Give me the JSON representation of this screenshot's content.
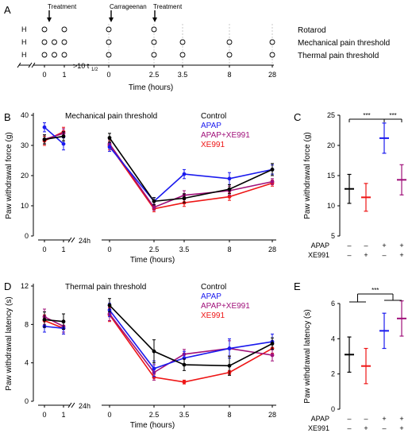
{
  "panelA": {
    "letter": "A",
    "rows": [
      {
        "prefix": "H",
        "label": "Rotarod",
        "pre": [
          0,
          1
        ],
        "post": [
          0,
          2.5
        ]
      },
      {
        "prefix": "H",
        "label": "Mechanical pain threshold",
        "pre": [
          0,
          0.5,
          1
        ],
        "post": [
          0,
          2.5,
          3.5,
          8,
          28
        ]
      },
      {
        "prefix": "H",
        "label": "Thermal pain threshold",
        "pre": [
          0,
          0.5,
          1
        ],
        "post": [
          0,
          2.5,
          3.5,
          8,
          28
        ]
      }
    ],
    "arrows": [
      "Treatment",
      "Carrageenan",
      "Treatment"
    ],
    "gap_label": ">10 t",
    "gap_sub": "1/2",
    "ticks_pre": [
      "0",
      "1"
    ],
    "ticks_post": [
      "0",
      "2.5",
      "3.5",
      "8",
      "28"
    ],
    "xlabel": "Time (hours)"
  },
  "colors": {
    "Control": "#000000",
    "APAP": "#1a1aee",
    "APAP+XE991": "#a0107a",
    "XE991": "#ee1515"
  },
  "chart_data": [
    {
      "id": "B",
      "type": "line",
      "title": "Mechanical pain threshold",
      "ylabel": "Paw withdrawal force (g)",
      "xlabel": "Time (hours)",
      "ylim": [
        0,
        40
      ],
      "yticks": [
        "0",
        "10",
        "20",
        "30",
        "40"
      ],
      "gap_label": "24h",
      "x_pre": [
        "0",
        "1"
      ],
      "x_post": [
        "0",
        "2.5",
        "3.5",
        "8",
        "28"
      ],
      "legend": [
        "Control",
        "APAP",
        "APAP+XE991",
        "XE991"
      ],
      "series": [
        {
          "name": "Control",
          "pre": [
            32,
            33
          ],
          "pre_err": [
            1.5,
            1.5
          ],
          "post": [
            32.5,
            11.5,
            12.5,
            15.5,
            22
          ],
          "post_err": [
            1.5,
            1.2,
            1.5,
            1.5,
            2
          ]
        },
        {
          "name": "APAP",
          "pre": [
            36,
            30.5
          ],
          "pre_err": [
            1.5,
            2
          ],
          "post": [
            29.5,
            11.5,
            20.5,
            19,
            22
          ],
          "post_err": [
            1.5,
            1.2,
            1.5,
            2,
            1.5
          ]
        },
        {
          "name": "APAP+XE991",
          "pre": [
            32,
            34
          ],
          "pre_err": [
            1.5,
            1.5
          ],
          "post": [
            30.5,
            9.5,
            13.5,
            15,
            18
          ],
          "post_err": [
            1.5,
            1,
            1.5,
            1.5,
            1
          ]
        },
        {
          "name": "XE991",
          "pre": [
            31.5,
            34.5
          ],
          "pre_err": [
            1.5,
            1.5
          ],
          "post": [
            30,
            9,
            11,
            13,
            17.5
          ],
          "post_err": [
            1.5,
            1,
            1.2,
            1.2,
            1
          ]
        }
      ]
    },
    {
      "id": "C",
      "type": "bar",
      "ylabel": "Paw withdrawal force (g)",
      "ylim": [
        5,
        25
      ],
      "yticks": [
        "5",
        "10",
        "15",
        "20",
        "25"
      ],
      "row_labels": [
        "APAP",
        "XE991"
      ],
      "categories": [
        [
          "–",
          "–"
        ],
        [
          "–",
          "+"
        ],
        [
          "+",
          "–"
        ],
        [
          "+",
          "+"
        ]
      ],
      "series": [
        {
          "name": "Control",
          "value": 12.8,
          "err": 2.4
        },
        {
          "name": "XE991",
          "value": 11.4,
          "err": 2.3
        },
        {
          "name": "APAP",
          "value": 21.2,
          "err": 2.5
        },
        {
          "name": "APAP+XE991",
          "value": 14.3,
          "err": 2.5
        }
      ],
      "sig_labels": [
        "***",
        "***"
      ]
    },
    {
      "id": "D",
      "type": "line",
      "title": "Thermal pain threshold",
      "ylabel": "Paw withdrawal latency (s)",
      "xlabel": "Time (hours)",
      "ylim": [
        0,
        12
      ],
      "yticks": [
        "0",
        "4",
        "8",
        "12"
      ],
      "gap_label": "24h",
      "x_pre": [
        "0",
        "1"
      ],
      "x_post": [
        "0",
        "2.5",
        "3.5",
        "8",
        "28"
      ],
      "legend": [
        "Control",
        "APAP",
        "APAP+XE991",
        "XE991"
      ],
      "series": [
        {
          "name": "Control",
          "pre": [
            8.5,
            8.3
          ],
          "pre_err": [
            0.8,
            0.8
          ],
          "post": [
            10,
            5.2,
            3.8,
            3.7,
            6
          ],
          "post_err": [
            0.7,
            1.2,
            0.6,
            1,
            0.6
          ]
        },
        {
          "name": "APAP",
          "pre": [
            7.8,
            7.6
          ],
          "pre_err": [
            0.6,
            0.6
          ],
          "post": [
            9.5,
            3.4,
            4.5,
            5.5,
            6.2
          ],
          "post_err": [
            0.7,
            0.8,
            0.7,
            1,
            0.8
          ]
        },
        {
          "name": "APAP+XE991",
          "pre": [
            8.8,
            7.8
          ],
          "pre_err": [
            0.8,
            0.6
          ],
          "post": [
            9.1,
            3,
            4.9,
            5.5,
            4.8
          ],
          "post_err": [
            0.7,
            0.8,
            0.5,
            0.8,
            0.6
          ]
        },
        {
          "name": "XE991",
          "pre": [
            8.4,
            7.6
          ],
          "pre_err": [
            0.6,
            0.6
          ],
          "post": [
            9,
            2.5,
            2,
            3,
            5.5
          ],
          "post_err": [
            0.7,
            0.3,
            0.2,
            0.2,
            0.5
          ]
        }
      ]
    },
    {
      "id": "E",
      "type": "bar",
      "ylabel": "Paw withdrawal latency (s)",
      "ylim": [
        0,
        6
      ],
      "yticks": [
        "0",
        "2",
        "4",
        "6"
      ],
      "row_labels": [
        "APAP",
        "XE991"
      ],
      "categories": [
        [
          "–",
          "–"
        ],
        [
          "–",
          "+"
        ],
        [
          "+",
          "–"
        ],
        [
          "+",
          "+"
        ]
      ],
      "series": [
        {
          "name": "Control",
          "value": 3.1,
          "err": 1.0
        },
        {
          "name": "XE991",
          "value": 2.45,
          "err": 1.0
        },
        {
          "name": "APAP",
          "value": 4.45,
          "err": 1.0
        },
        {
          "name": "APAP+XE991",
          "value": 5.15,
          "err": 1.0
        }
      ],
      "sig_labels": [
        "***"
      ]
    }
  ]
}
